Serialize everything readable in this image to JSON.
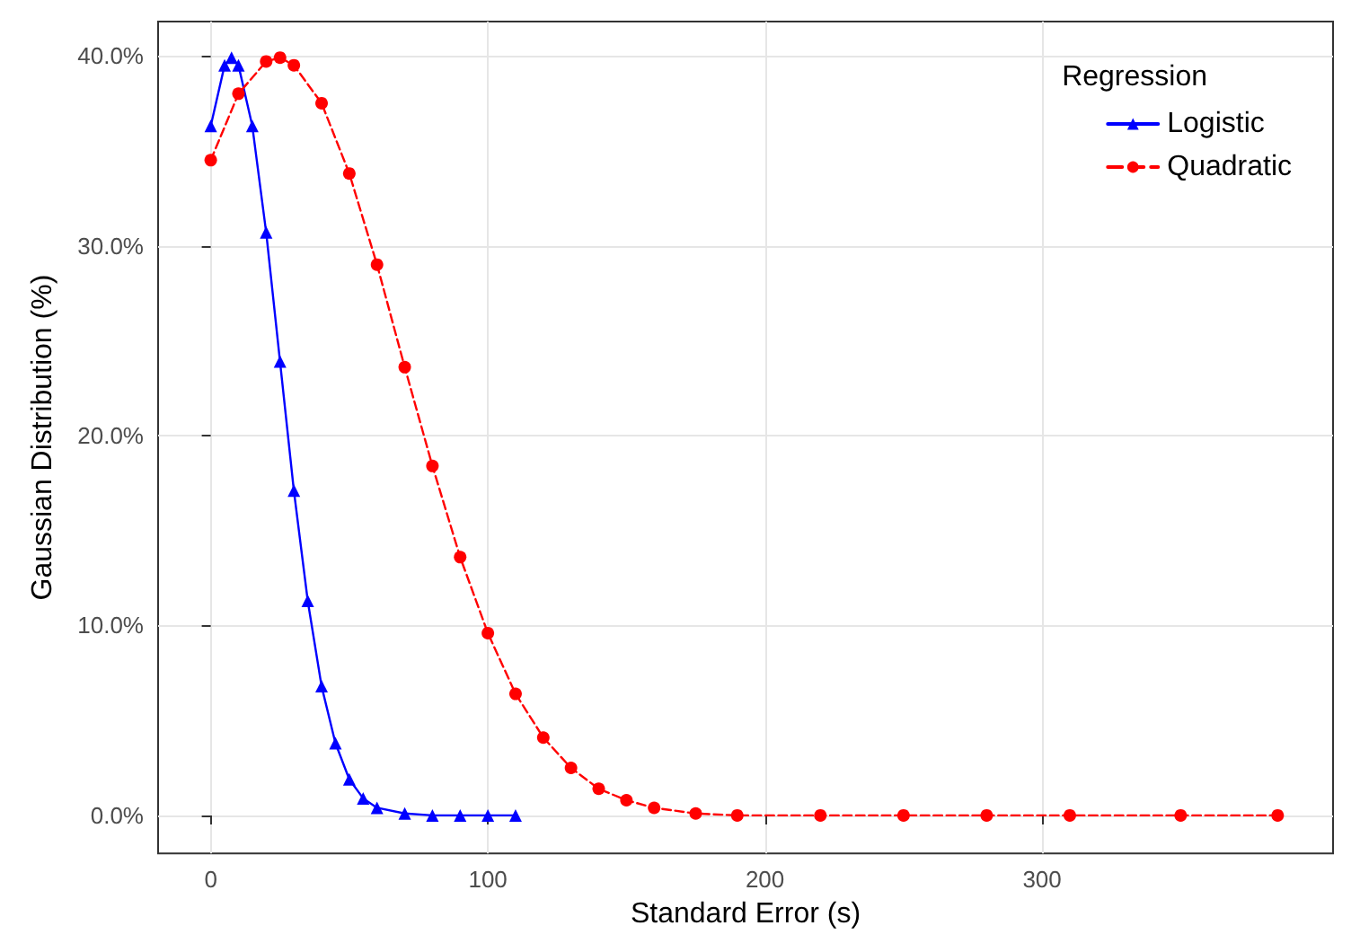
{
  "chart_data": {
    "type": "line",
    "xlabel": "Standard Error (s)",
    "ylabel": "Gaussian Distribution (%)",
    "legend_title": "Regression",
    "legend": "top right",
    "grid": true,
    "xlim": [
      -19,
      405
    ],
    "xticks": [
      0,
      100,
      200,
      300
    ],
    "ylim": [
      -2,
      41.8
    ],
    "yticks": [
      {
        "value": 0,
        "label": "0.0%"
      },
      {
        "value": 10,
        "label": "10.0%"
      },
      {
        "value": 20,
        "label": "20.0%"
      },
      {
        "value": 30,
        "label": "30.0%"
      },
      {
        "value": 40,
        "label": "40.0%"
      }
    ],
    "series": [
      {
        "name": "Logistic",
        "color": "#0000ff",
        "marker": "triangle",
        "line_style": "solid",
        "x": [
          0,
          5,
          7.5,
          10,
          15,
          20,
          25,
          30,
          35,
          40,
          45,
          50,
          55,
          60,
          70,
          80,
          90,
          100,
          110
        ],
        "values": [
          36.3,
          39.5,
          39.9,
          39.5,
          36.3,
          30.7,
          23.9,
          17.1,
          11.3,
          6.8,
          3.8,
          1.9,
          0.9,
          0.4,
          0.1,
          0,
          0,
          0,
          0
        ]
      },
      {
        "name": "Quadratic",
        "color": "#ff0000",
        "marker": "circle",
        "line_style": "dashed",
        "x": [
          0,
          10,
          20,
          25,
          30,
          40,
          50,
          60,
          70,
          80,
          90,
          100,
          110,
          120,
          130,
          140,
          150,
          160,
          175,
          190,
          220,
          250,
          280,
          310,
          350,
          385
        ],
        "values": [
          34.5,
          38.0,
          39.7,
          39.9,
          39.5,
          37.5,
          33.8,
          29.0,
          23.6,
          18.4,
          13.6,
          9.6,
          6.4,
          4.1,
          2.5,
          1.4,
          0.8,
          0.4,
          0.1,
          0,
          0,
          0,
          0,
          0,
          0,
          0
        ]
      }
    ]
  }
}
